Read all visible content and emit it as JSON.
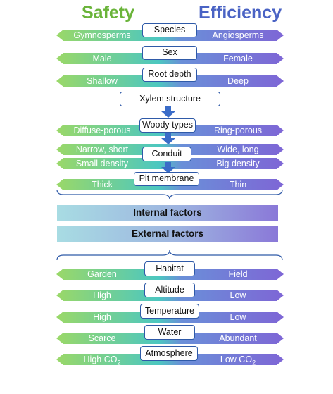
{
  "headers": {
    "left": "Safety",
    "right": "Efficiency"
  },
  "colors": {
    "safety_green": "#6ab43a",
    "efficiency_blue": "#4a63c4",
    "arrow_left": "#8fd06a",
    "arrow_mid": "#5fc9c2",
    "arrow_right": "#7d6fd6",
    "box_border": "#2f5aa8",
    "flow_arrow": "#3a6cc8"
  },
  "rows": [
    {
      "center": "Species",
      "left": "Gymnosperms",
      "right": "Angiosperms"
    },
    {
      "center": "Sex",
      "left": "Male",
      "right": "Female"
    },
    {
      "center": "Root depth",
      "left": "Shallow",
      "right": "Deep"
    },
    {
      "center": "Woody types",
      "left": "Diffuse-porous",
      "right": "Ring-porous"
    },
    {
      "center": "Conduit",
      "left": "Narrow, short",
      "right": "Wide, long",
      "left2": "Small density",
      "right2": "Big  density"
    },
    {
      "center": "Pit membrane",
      "left": "Thick",
      "right": "Thin"
    },
    {
      "center": "Habitat",
      "left": "Garden",
      "right": "Field"
    },
    {
      "center": "Altitude",
      "left": "High",
      "right": "Low"
    },
    {
      "center": "Temperature",
      "left": "High",
      "right": "Low"
    },
    {
      "center": "Water",
      "left": "Scarce",
      "right": "Abundant"
    },
    {
      "center": "Atmosphere",
      "left": "High CO",
      "left_sub": "2",
      "right": "Low CO",
      "right_sub": "2"
    }
  ],
  "xylem_structure": "Xylem structure",
  "factors": {
    "internal": "Internal factors",
    "external": "External factors"
  },
  "icons": [
    "double-arrow-icon",
    "down-arrow-icon",
    "bracket-icon"
  ]
}
